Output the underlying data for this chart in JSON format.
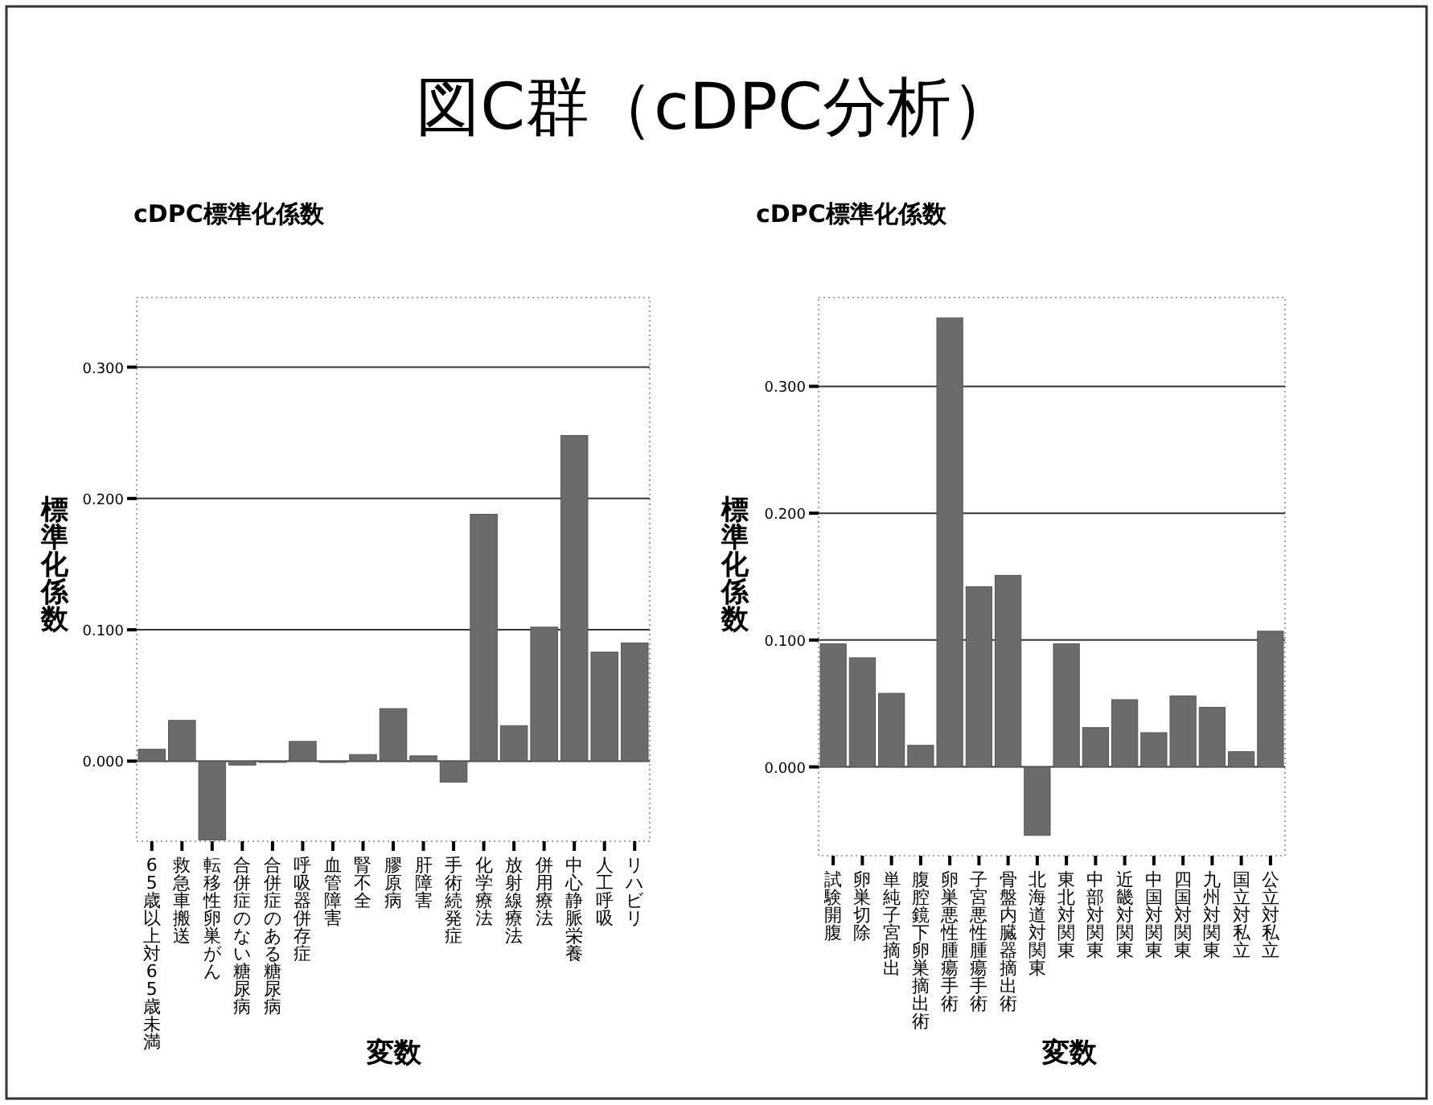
{
  "chart_data": [
    {
      "type": "bar",
      "title": "cDPC標準化係数",
      "annotations": [
        "図C群（cDPC分析）"
      ],
      "xlabel": "変数",
      "ylabel": "標準化係数",
      "categories": [
        "65歳以上対65歳未満",
        "救急車搬送",
        "転移性卵巣がん",
        "合併症のない糖尿病",
        "合併症のある糖尿病",
        "呼吸器併存症",
        "血管障害",
        "腎不全",
        "膠原病",
        "肝障害",
        "手術続発症",
        "化学療法",
        "放射線療法",
        "併用療法",
        "中心静脈栄養",
        "人工呼吸",
        "リハビリ"
      ],
      "values": [
        0.009,
        0.031,
        -0.06,
        -0.003,
        -0.001,
        0.015,
        -0.001,
        0.005,
        0.04,
        0.004,
        -0.016,
        0.188,
        0.027,
        0.102,
        0.248,
        0.083,
        0.09
      ],
      "color": "#6b6b6b",
      "ylim": [
        -0.061,
        0.353
      ],
      "yticks": [
        {
          "value": 0,
          "label": "0.000"
        },
        {
          "value": 0.1,
          "label": "0.100"
        },
        {
          "value": 0.2,
          "label": "0.200"
        },
        {
          "value": 0.3,
          "label": "0.300"
        }
      ],
      "grid": "y",
      "legend": false
    },
    {
      "type": "bar",
      "title": "cDPC標準化係数",
      "xlabel": "変数",
      "ylabel": "標準化係数",
      "categories": [
        "試験開腹",
        "卵巣切除",
        "単純子宮摘出",
        "腹腔鏡下卵巣摘出術",
        "卵巣悪性腫瘍手術",
        "子宮悪性腫瘍手術",
        "骨盤内臓器摘出術",
        "北海道対関東",
        "東北対関東",
        "中部対関東",
        "近畿対関東",
        "中国対関東",
        "四国対関東",
        "九州対関東",
        "国立対私立",
        "公立対私立"
      ],
      "values": [
        0.097,
        0.086,
        0.058,
        0.017,
        0.354,
        0.142,
        0.151,
        -0.054,
        0.097,
        0.031,
        0.053,
        0.027,
        0.056,
        0.047,
        0.012,
        0.107
      ],
      "color": "#6b6b6b",
      "ylim": [
        -0.07,
        0.37
      ],
      "yticks": [
        {
          "value": 0,
          "label": "0.000"
        },
        {
          "value": 0.1,
          "label": "0.100"
        },
        {
          "value": 0.2,
          "label": "0.200"
        },
        {
          "value": 0.3,
          "label": "0.300"
        }
      ],
      "grid": "y",
      "legend": false
    }
  ]
}
